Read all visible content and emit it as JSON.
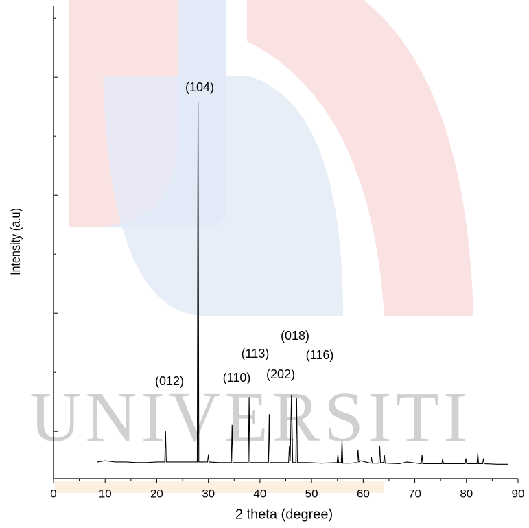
{
  "chart_data": {
    "type": "line",
    "watermark": "UNIVERSITI",
    "x_label": "2 theta (degree)",
    "y_label": "Intensity (a.u)",
    "xlim": [
      0,
      90
    ],
    "xticks": [
      0,
      10,
      20,
      30,
      40,
      50,
      60,
      70,
      80,
      90
    ],
    "xminorticks": [
      5,
      15,
      25,
      35,
      45,
      55,
      65,
      75,
      85
    ],
    "ylim": [
      0,
      800
    ],
    "yticks": [
      80,
      280,
      480,
      680
    ],
    "yminorticks": [
      180,
      380,
      580,
      780
    ],
    "grid": false,
    "series": [
      {
        "color": "#000000",
        "x": [
          8.5,
          10,
          12,
          14,
          16,
          18,
          20,
          21.55,
          21.7,
          21.85,
          24,
          26,
          27.85,
          28.0,
          28.15,
          29.85,
          30.0,
          30.15,
          32,
          34.45,
          34.6,
          34.75,
          36,
          37.75,
          37.9,
          38.05,
          40,
          41.65,
          41.8,
          41.95,
          43,
          45.55,
          45.7,
          45.85,
          46.1,
          46.35,
          46.95,
          47.1,
          47.25,
          49,
          52,
          54.95,
          55.1,
          55.25,
          55.75,
          55.9,
          56.05,
          57.5,
          58.85,
          59.0,
          59.15,
          59.5,
          61.45,
          61.6,
          61.75,
          63.05,
          63.2,
          63.35,
          63.95,
          64.1,
          64.25,
          67,
          68.5,
          71.25,
          71.4,
          71.55,
          73,
          75.25,
          75.4,
          75.55,
          77,
          79.75,
          79.9,
          80.05,
          82.05,
          82.2,
          82.35,
          83.15,
          83.3,
          83.45,
          86,
          88
        ],
        "values": [
          28,
          30,
          28,
          28,
          27,
          27,
          28,
          28,
          81,
          28,
          28,
          28,
          28,
          638,
          28,
          28,
          41,
          28,
          27,
          27,
          91,
          27,
          27,
          27,
          138,
          27,
          27,
          27,
          109,
          27,
          27,
          27,
          55,
          30,
          142,
          27,
          27,
          137,
          27,
          27,
          26,
          27,
          41,
          27,
          27,
          65,
          26,
          26,
          27,
          49,
          28,
          30,
          26,
          36,
          26,
          26,
          56,
          27,
          27,
          40,
          26,
          25,
          28,
          25,
          40,
          25,
          25,
          25,
          34,
          25,
          25,
          25,
          34,
          25,
          25,
          43,
          25,
          25,
          34,
          25,
          24,
          24
        ]
      }
    ],
    "annotations": [
      "(012)",
      "(104)",
      "(110)",
      "(113)",
      "(202)",
      "(018)",
      "(116)"
    ]
  }
}
